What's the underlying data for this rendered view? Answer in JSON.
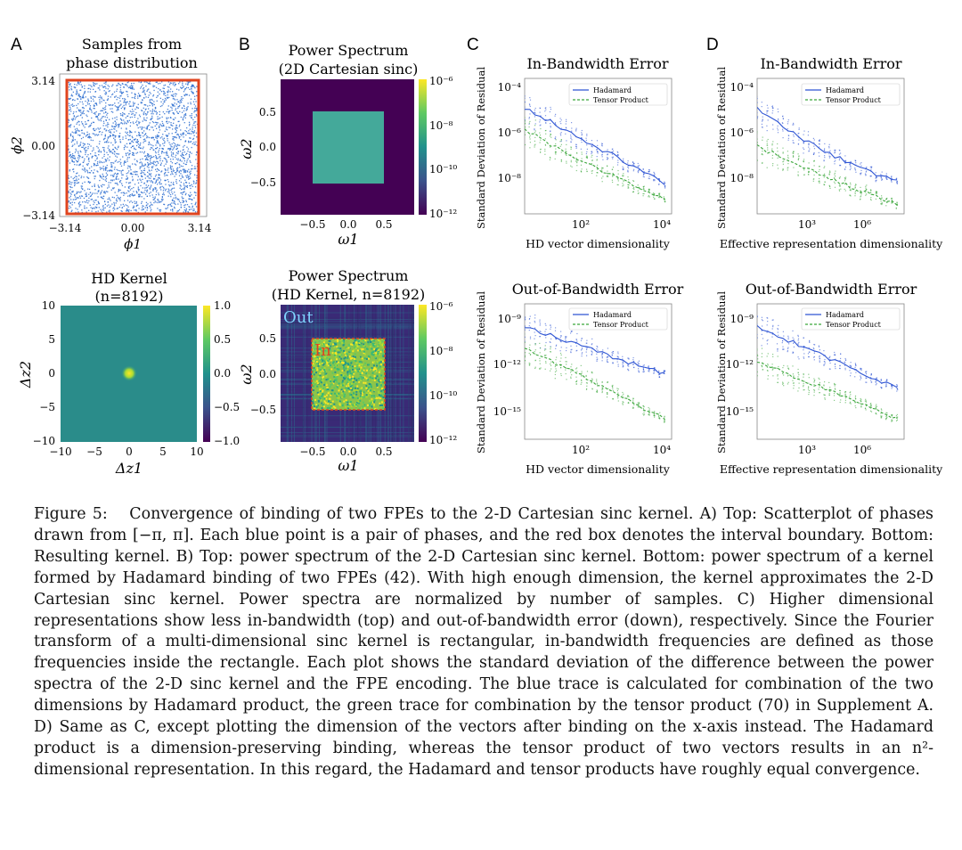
{
  "figure": {
    "panel_letters": [
      "A",
      "B",
      "C",
      "D"
    ],
    "colors": {
      "scatter_blue": "#2e6fd0",
      "hadamard_blue": "#2f55d4",
      "tensor_green": "#3aa63a",
      "red_box": "#e0441f",
      "viridis": [
        "#440154",
        "#3b528b",
        "#21918c",
        "#5ec962",
        "#fde725"
      ]
    },
    "a_top": {
      "title1": "Samples from",
      "title2": "phase distribution",
      "xticks": [
        "−3.14",
        "0.00",
        "3.14"
      ],
      "yticks": [
        "3.14",
        "0.00",
        "−3.14"
      ],
      "xlabel": "ϕ1",
      "ylabel": "ϕ2"
    },
    "a_bottom": {
      "title1": "HD Kernel",
      "title2": "(n=8192)",
      "xticks": [
        "−10",
        "−5",
        "0",
        "5",
        "10"
      ],
      "yticks": [
        "10",
        "5",
        "0",
        "−5",
        "−10"
      ],
      "xlabel": "Δz1",
      "ylabel": "Δz2",
      "cbar_ticks": [
        "1.0",
        "0.5",
        "0.0",
        "−0.5",
        "−1.0"
      ]
    },
    "b_top": {
      "title1": "Power Spectrum",
      "title2": "(2D Cartesian sinc)",
      "xticks": [
        "−0.5",
        "0.0",
        "0.5"
      ],
      "yticks": [
        "0.5",
        "0.0",
        "−0.5"
      ],
      "xlabel": "ω1",
      "ylabel": "ω2",
      "cbar_ticks": [
        "10⁻⁶",
        "10⁻⁸",
        "10⁻¹⁰",
        "10⁻¹²"
      ]
    },
    "b_bottom": {
      "title1": "Power Spectrum",
      "title2": "(HD Kernel, n=8192)",
      "label_out": "Out",
      "label_in": "In",
      "xticks": [
        "−0.5",
        "0.0",
        "0.5"
      ],
      "yticks": [
        "0.5",
        "0.0",
        "−0.5"
      ],
      "xlabel": "ω1",
      "ylabel": "ω2",
      "cbar_ticks": [
        "10⁻⁶",
        "10⁻⁸",
        "10⁻¹⁰",
        "10⁻¹²"
      ]
    },
    "c_top": {
      "title": "In-Bandwidth Error",
      "ylabel": "Standard Deviation of Residual",
      "xlabel": "HD vector dimensionality",
      "yticks": [
        "10⁻⁴",
        "10⁻⁶",
        "10⁻⁸"
      ],
      "xticks": [
        "10²",
        "10⁴"
      ],
      "legend": [
        "Hadamard",
        "Tensor Product"
      ]
    },
    "c_bottom": {
      "title": "Out-of-Bandwidth Error",
      "ylabel": "Standard Deviation of Residual",
      "xlabel": "HD vector dimensionality",
      "yticks": [
        "10⁻⁹",
        "10⁻¹²",
        "10⁻¹⁵"
      ],
      "xticks": [
        "10²",
        "10⁴"
      ],
      "legend": [
        "Hadamard",
        "Tensor Product"
      ]
    },
    "d_top": {
      "title": "In-Bandwidth Error",
      "ylabel": "Standard Deviation of Residual",
      "xlabel": "Effective representation dimensionality",
      "yticks": [
        "10⁻⁴",
        "10⁻⁶",
        "10⁻⁸"
      ],
      "xticks": [
        "10³",
        "10⁶"
      ],
      "legend": [
        "Hadamard",
        "Tensor Product"
      ]
    },
    "d_bottom": {
      "title": "Out-of-Bandwidth Error",
      "ylabel": "Standard Deviation of Residual",
      "xlabel": "Effective representation dimensionality",
      "yticks": [
        "10⁻⁹",
        "10⁻¹²",
        "10⁻¹⁵"
      ],
      "xticks": [
        "10³",
        "10⁶"
      ],
      "legend": [
        "Hadamard",
        "Tensor Product"
      ]
    }
  },
  "caption": [
    "Figure 5:  Convergence of binding of two FPEs to the 2-D Cartesian sinc kernel. A) Top: Scatterplot of phases drawn from [−π, π]. Each blue point is a pair of phases, and the red box denotes the interval boundary. Bottom: Resulting kernel. B) Top: power spectrum of the 2-D Cartesian sinc kernel. Bottom: power spectrum of a kernel formed by Hadamard binding of two FPEs (42). With high enough dimension, the kernel approximates the 2-D Cartesian sinc kernel. Power spectra are normalized by number of samples. C) Higher dimensional representations show less in-bandwidth (top) and out-of-bandwidth error (down), respectively. Since the Fourier transform of a multi-dimensional sinc kernel is rectangular, in-bandwidth frequencies are defined as those frequencies inside the rectangle. Each plot shows the standard deviation of the difference between the power spectra of the 2-D sinc kernel and the FPE encoding. The blue trace is calculated for combination of the two dimensions by Hadamard product, the green trace for combination by the tensor product (70) in Supplement A. D) Same as C, except plotting the dimension of the vectors after binding on the x-axis instead. The Hadamard product is a dimension-preserving binding, whereas the tensor product of two vectors results in an n²-dimensional representation. In this regard, the Hadamard and tensor products have roughly equal convergence."
  ]
}
